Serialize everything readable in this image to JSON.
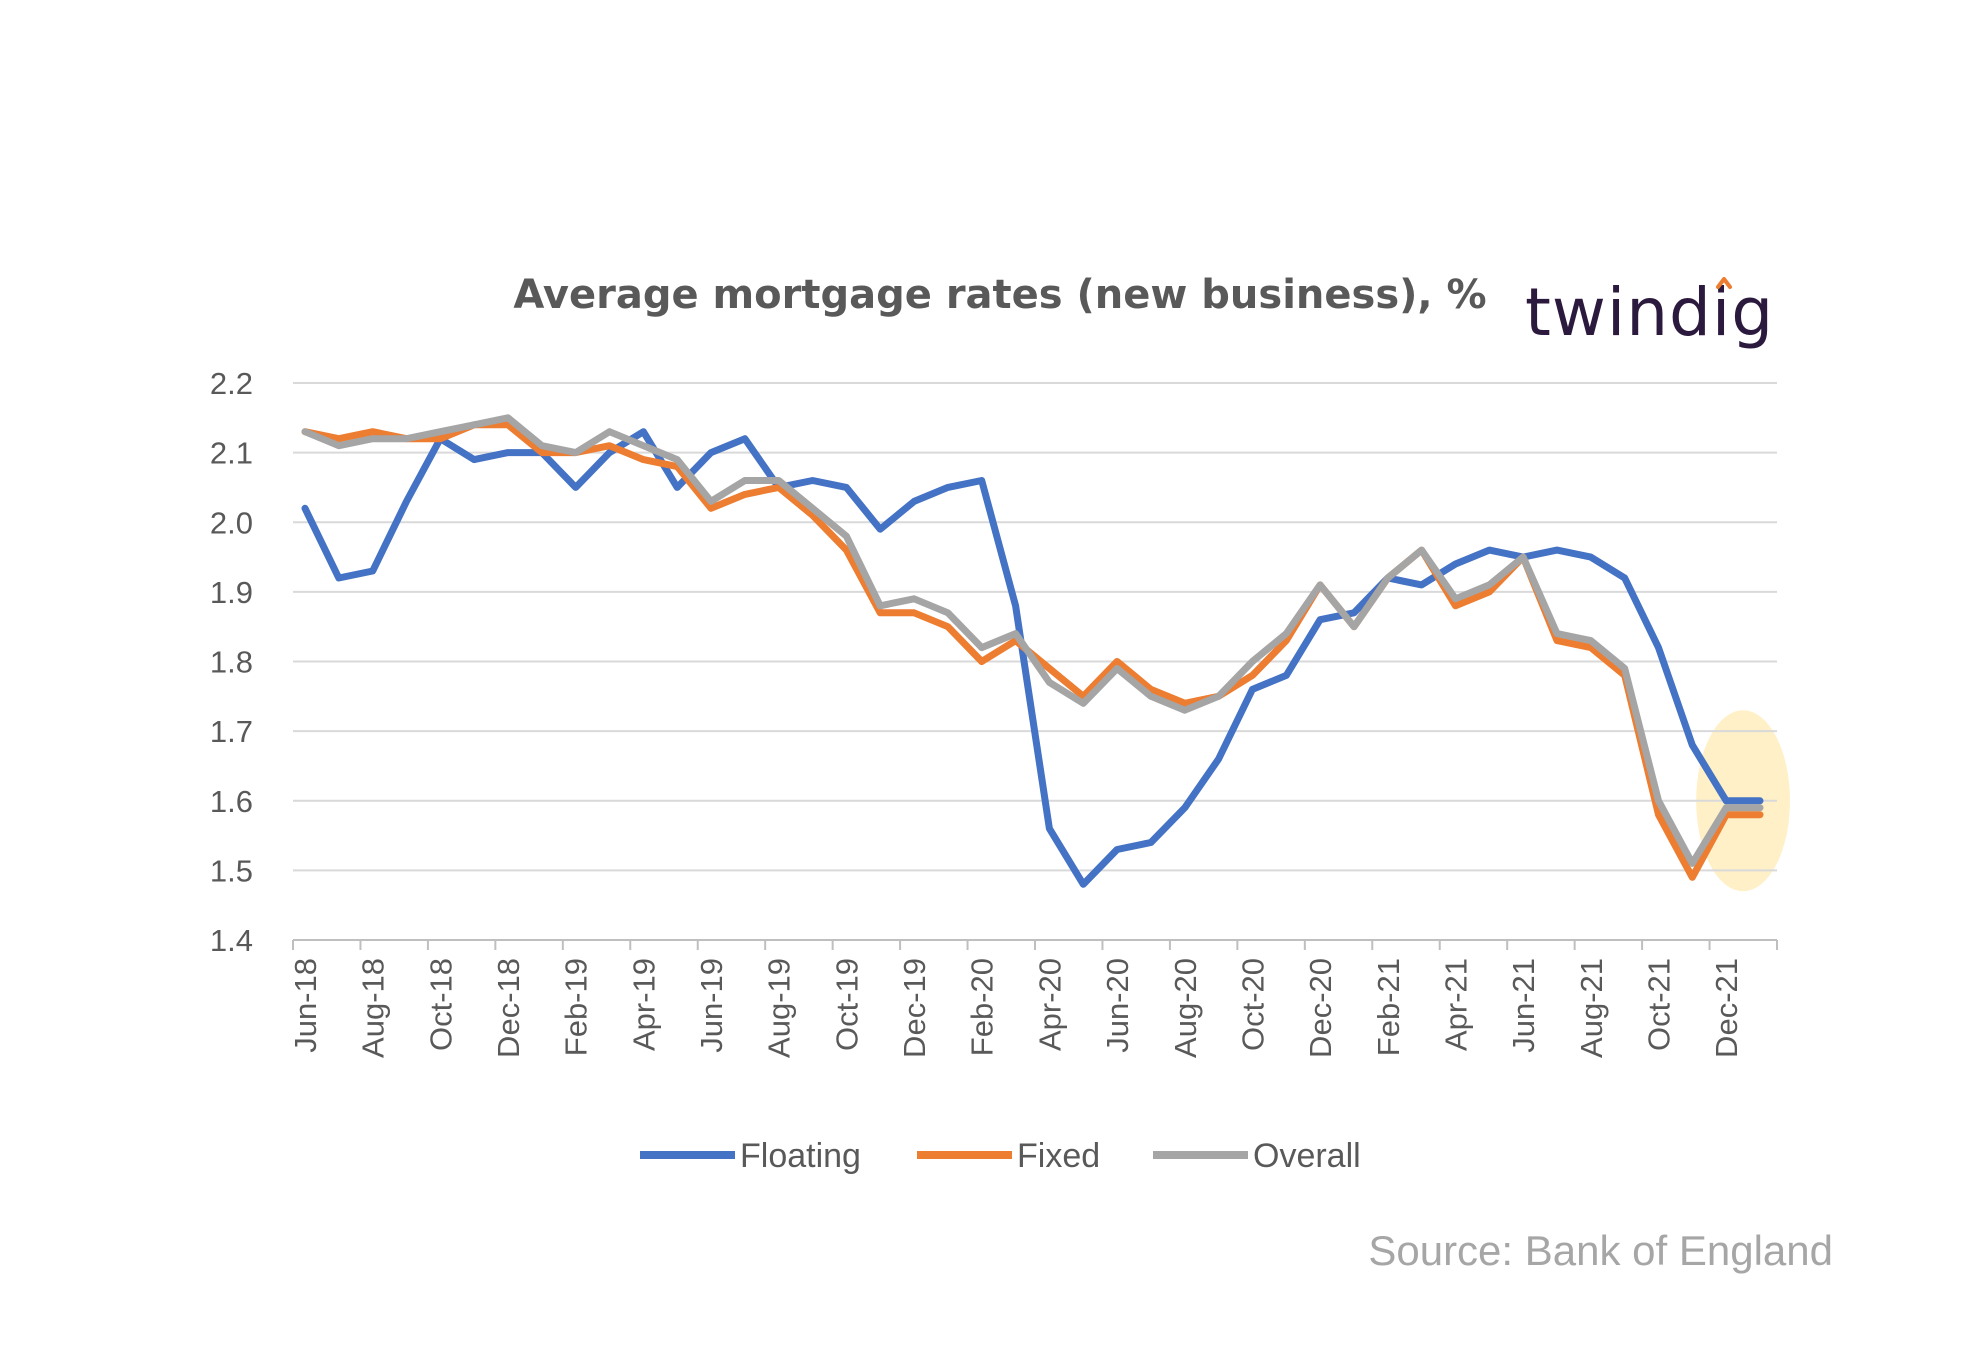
{
  "chart_data": {
    "type": "line",
    "title": "Average mortgage rates (new business), %",
    "logo": "twindig",
    "source": "Source: Bank of England",
    "ylim": [
      1.4,
      2.2
    ],
    "y_ticks": [
      "2.2",
      "2.1",
      "2.0",
      "1.9",
      "1.8",
      "1.7",
      "1.6",
      "1.5",
      "1.4"
    ],
    "grid": true,
    "legend_position": "bottom",
    "x": [
      "Jun-18",
      "Jul-18",
      "Aug-18",
      "Sep-18",
      "Oct-18",
      "Nov-18",
      "Dec-18",
      "Jan-19",
      "Feb-19",
      "Mar-19",
      "Apr-19",
      "May-19",
      "Jun-19",
      "Jul-19",
      "Aug-19",
      "Sep-19",
      "Oct-19",
      "Nov-19",
      "Dec-19",
      "Jan-20",
      "Feb-20",
      "Mar-20",
      "Apr-20",
      "May-20",
      "Jun-20",
      "Jul-20",
      "Aug-20",
      "Sep-20",
      "Oct-20",
      "Nov-20",
      "Dec-20",
      "Jan-21",
      "Feb-21",
      "Mar-21",
      "Apr-21",
      "May-21",
      "Jun-21",
      "Jul-21",
      "Aug-21",
      "Sep-21",
      "Oct-21",
      "Nov-21",
      "Dec-21",
      "Jan-22"
    ],
    "x_tick_labels": [
      "Jun-18",
      "Aug-18",
      "Oct-18",
      "Dec-18",
      "Feb-19",
      "Apr-19",
      "Jun-19",
      "Aug-19",
      "Oct-19",
      "Dec-19",
      "Feb-20",
      "Apr-20",
      "Jun-20",
      "Aug-20",
      "Oct-20",
      "Dec-20",
      "Feb-21",
      "Apr-21",
      "Jun-21",
      "Aug-21",
      "Oct-21",
      "Dec-21"
    ],
    "highlight": {
      "from": "Dec-21",
      "to": "Jan-22",
      "y_from": 1.47,
      "y_to": 1.73,
      "color": "#fff0c8"
    },
    "series": [
      {
        "name": "Floating",
        "color": "#4472c4",
        "values": [
          2.02,
          1.92,
          1.93,
          2.03,
          2.12,
          2.09,
          2.1,
          2.1,
          2.05,
          2.1,
          2.13,
          2.05,
          2.1,
          2.12,
          2.05,
          2.06,
          2.05,
          1.99,
          2.03,
          2.05,
          2.06,
          1.88,
          1.56,
          1.48,
          1.53,
          1.54,
          1.59,
          1.66,
          1.76,
          1.78,
          1.86,
          1.87,
          1.92,
          1.91,
          1.94,
          1.96,
          1.95,
          1.96,
          1.95,
          1.92,
          1.82,
          1.68,
          1.6,
          1.6
        ]
      },
      {
        "name": "Fixed",
        "color": "#ed7d31",
        "values": [
          2.13,
          2.12,
          2.13,
          2.12,
          2.12,
          2.14,
          2.14,
          2.1,
          2.1,
          2.11,
          2.09,
          2.08,
          2.02,
          2.04,
          2.05,
          2.01,
          1.96,
          1.87,
          1.87,
          1.85,
          1.8,
          1.83,
          1.79,
          1.75,
          1.8,
          1.76,
          1.74,
          1.75,
          1.78,
          1.83,
          1.91,
          1.85,
          1.92,
          1.96,
          1.88,
          1.9,
          1.95,
          1.83,
          1.82,
          1.78,
          1.58,
          1.49,
          1.58,
          1.58
        ]
      },
      {
        "name": "Overall",
        "color": "#a5a5a5",
        "values": [
          2.13,
          2.11,
          2.12,
          2.12,
          2.13,
          2.14,
          2.15,
          2.11,
          2.1,
          2.13,
          2.11,
          2.09,
          2.03,
          2.06,
          2.06,
          2.02,
          1.98,
          1.88,
          1.89,
          1.87,
          1.82,
          1.84,
          1.77,
          1.74,
          1.79,
          1.75,
          1.73,
          1.75,
          1.8,
          1.84,
          1.91,
          1.85,
          1.92,
          1.96,
          1.89,
          1.91,
          1.95,
          1.84,
          1.83,
          1.79,
          1.6,
          1.51,
          1.59,
          1.59
        ]
      }
    ]
  }
}
